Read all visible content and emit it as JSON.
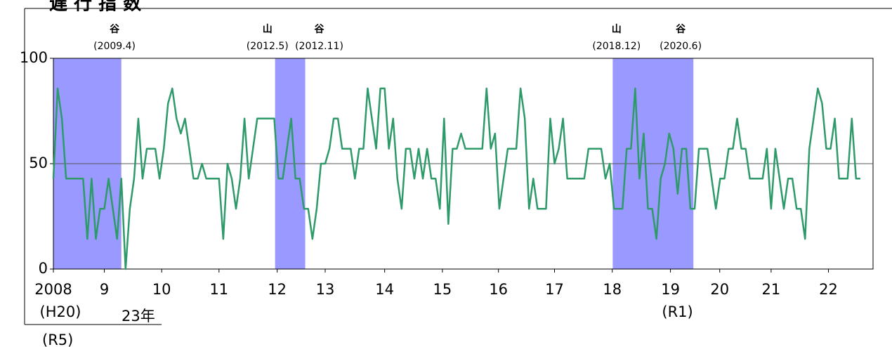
{
  "chart_data": {
    "type": "line",
    "title": "遅 行 指 数",
    "x": [
      0,
      1,
      2,
      3,
      4,
      5,
      6,
      7,
      8,
      9,
      10,
      11,
      12,
      13,
      14,
      15,
      16,
      17,
      18,
      19,
      20,
      21,
      22,
      23,
      24,
      25,
      26,
      27,
      28,
      29,
      30,
      31,
      32,
      33,
      34,
      35,
      36,
      37,
      38,
      39,
      40,
      41,
      42,
      43,
      44,
      45,
      46,
      47,
      48,
      49,
      50,
      51,
      52,
      53,
      54,
      55,
      56,
      57,
      58,
      59,
      60,
      61,
      62,
      63,
      64,
      65,
      66,
      67,
      68,
      69,
      70,
      71,
      72,
      73,
      74,
      75,
      76,
      77,
      78,
      79,
      80,
      81,
      82,
      83,
      84,
      85,
      86,
      87,
      88,
      89,
      90,
      91,
      92,
      93,
      94,
      95,
      96,
      97,
      98,
      99,
      100,
      101,
      102,
      103,
      104,
      105,
      106,
      107,
      108,
      109,
      110,
      111,
      112,
      113,
      114,
      115,
      116,
      117,
      118,
      119,
      120,
      121,
      122,
      123,
      124,
      125,
      126,
      127,
      128,
      129,
      130,
      131,
      132,
      133,
      134,
      135,
      136,
      137,
      138,
      139,
      140,
      141,
      142,
      143,
      144,
      145,
      146,
      147,
      148,
      149,
      150,
      151,
      152,
      153,
      154,
      155,
      156,
      157,
      158,
      159,
      160,
      161,
      162,
      163,
      164,
      165,
      166,
      167,
      168,
      169,
      170,
      171,
      172,
      173,
      174,
      175,
      176,
      177,
      178,
      179,
      180,
      181,
      182,
      183,
      184,
      185,
      186,
      187,
      188,
      189,
      190
    ],
    "series": [
      {
        "color": "#2e9a6a",
        "values": [
          42.9,
          85.7,
          71.4,
          42.9,
          42.9,
          42.9,
          42.9,
          42.9,
          14.3,
          42.9,
          14.3,
          28.6,
          28.6,
          42.9,
          28.6,
          14.3,
          42.9,
          0,
          28.6,
          42.9,
          71.4,
          42.9,
          57.1,
          57.1,
          57.1,
          42.9,
          57.1,
          78.6,
          85.7,
          71.4,
          64.3,
          71.4,
          57.1,
          42.9,
          42.9,
          50,
          42.9,
          42.9,
          42.9,
          42.9,
          14.3,
          50,
          42.9,
          28.6,
          42.9,
          71.4,
          42.9,
          57.1,
          71.4,
          71.4,
          71.4,
          71.4,
          71.4,
          42.9,
          42.9,
          57.1,
          71.4,
          42.9,
          42.9,
          28.6,
          28.6,
          14.3,
          28.6,
          50,
          50,
          57.1,
          71.4,
          71.4,
          57.1,
          57.1,
          57.1,
          42.9,
          57.1,
          57.1,
          85.7,
          71.4,
          57.1,
          85.7,
          85.7,
          57.1,
          71.4,
          42.9,
          28.6,
          57.1,
          57.1,
          42.9,
          57.1,
          42.9,
          57.1,
          42.9,
          42.9,
          28.6,
          71.4,
          21.4,
          57.1,
          57.1,
          64.3,
          57.1,
          57.1,
          57.1,
          57.1,
          57.1,
          85.7,
          57.1,
          64.3,
          28.6,
          42.9,
          57.1,
          57.1,
          57.1,
          85.7,
          71.4,
          28.6,
          42.9,
          28.6,
          28.6,
          28.6,
          71.4,
          50,
          57.1,
          71.4,
          42.9,
          42.9,
          42.9,
          42.9,
          42.9,
          57.1,
          57.1,
          57.1,
          57.1,
          42.9,
          50,
          28.6,
          28.6,
          28.6,
          57.1,
          57.1,
          85.7,
          42.9,
          64.3,
          28.6,
          28.6,
          14.3,
          42.9,
          50,
          64.3,
          57.1,
          35.7,
          57.1,
          57.1,
          28.6,
          28.6,
          57.1,
          57.1,
          57.1,
          42.9,
          28.6,
          42.9,
          42.9,
          57.1,
          57.1,
          71.4,
          57.1,
          57.1,
          42.9,
          42.9,
          42.9,
          42.9,
          57.1,
          28.6,
          57.1,
          42.9,
          28.6,
          42.9,
          42.9,
          28.6,
          28.6,
          14.3,
          57.1,
          71.4,
          85.7,
          78.6,
          57.1,
          57.1,
          71.4,
          42.9,
          42.9,
          42.9,
          71.4,
          42.9,
          42.9
        ]
      }
    ],
    "xlim": [
      0,
      193
    ],
    "xticks": [
      {
        "value": 0,
        "label": "2008"
      },
      {
        "value": 12,
        "label": "9"
      },
      {
        "value": 25.5,
        "label": "10"
      },
      {
        "value": 39,
        "label": "11"
      },
      {
        "value": 52.7,
        "label": "12"
      },
      {
        "value": 64,
        "label": "13"
      },
      {
        "value": 78,
        "label": "14"
      },
      {
        "value": 91.6,
        "label": "15"
      },
      {
        "value": 104.8,
        "label": "16"
      },
      {
        "value": 118,
        "label": "17"
      },
      {
        "value": 131.6,
        "label": "18"
      },
      {
        "value": 145.3,
        "label": "19"
      },
      {
        "value": 156.9,
        "label": "20"
      },
      {
        "value": 169,
        "label": "21"
      },
      {
        "value": 182.5,
        "label": "22"
      }
    ],
    "x_sublabels": [
      {
        "value": 0,
        "label": "(H20)"
      },
      {
        "value": 145.3,
        "label": "(R1)"
      }
    ],
    "notes": [
      "23年",
      "(R5)"
    ],
    "ylim": [
      0,
      100
    ],
    "yticks": [
      0,
      50,
      100
    ],
    "hline": 50,
    "shade_color": "#9999ff",
    "shaded_ranges": [
      [
        0,
        16
      ],
      [
        52.2,
        59.3
      ],
      [
        131.7,
        150.7
      ]
    ],
    "annotations": [
      {
        "x": 14.4,
        "label": "谷",
        "date": "(2009.4)"
      },
      {
        "x": 50.4,
        "label": "山",
        "date": "(2012.5)"
      },
      {
        "x": 62.6,
        "label": "谷",
        "date": "(2012.11)"
      },
      {
        "x": 132.6,
        "label": "山",
        "date": "(2018.12)"
      },
      {
        "x": 147.7,
        "label": "谷",
        "date": "(2020.6)"
      }
    ]
  }
}
